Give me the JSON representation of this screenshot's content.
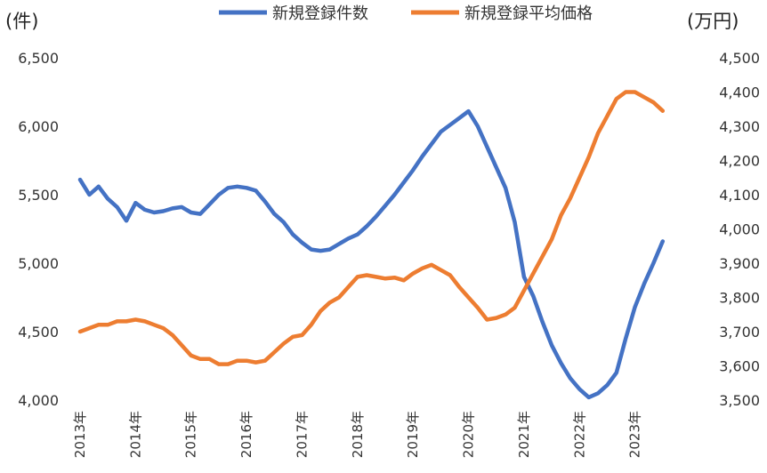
{
  "chart_data": {
    "type": "line",
    "title": "",
    "legend": {
      "placement": "top-center"
    },
    "grid": false,
    "x": {
      "label": "",
      "tick_labels": [
        "2013年",
        "2014年",
        "2015年",
        "2016年",
        "2017年",
        "2018年",
        "2019年",
        "2020年",
        "2021年",
        "2022年",
        "2023年"
      ],
      "range": [
        "2013-01",
        "2023-12"
      ]
    },
    "y_left": {
      "unit_label": "(件)",
      "range": [
        4000,
        6500
      ],
      "ticks": [
        "4,000",
        "4,500",
        "5,000",
        "5,500",
        "6,000",
        "6,500"
      ]
    },
    "y_right": {
      "unit_label": "(万円)",
      "range": [
        3500,
        4500
      ],
      "ticks": [
        "3,500",
        "3,600",
        "3,700",
        "3,800",
        "3,900",
        "4,000",
        "4,100",
        "4,200",
        "4,300",
        "4,400",
        "4,500"
      ]
    },
    "series": [
      {
        "name": "新規登録件数",
        "axis": "left",
        "color": "#4472C4",
        "points": [
          [
            "2013-01",
            5610
          ],
          [
            "2013-03",
            5500
          ],
          [
            "2013-05",
            5560
          ],
          [
            "2013-07",
            5470
          ],
          [
            "2013-09",
            5410
          ],
          [
            "2013-11",
            5310
          ],
          [
            "2014-01",
            5440
          ],
          [
            "2014-03",
            5390
          ],
          [
            "2014-05",
            5370
          ],
          [
            "2014-07",
            5380
          ],
          [
            "2014-09",
            5400
          ],
          [
            "2014-11",
            5410
          ],
          [
            "2015-01",
            5370
          ],
          [
            "2015-03",
            5360
          ],
          [
            "2015-05",
            5430
          ],
          [
            "2015-07",
            5500
          ],
          [
            "2015-09",
            5550
          ],
          [
            "2015-11",
            5560
          ],
          [
            "2016-01",
            5550
          ],
          [
            "2016-03",
            5530
          ],
          [
            "2016-05",
            5450
          ],
          [
            "2016-07",
            5360
          ],
          [
            "2016-09",
            5300
          ],
          [
            "2016-11",
            5210
          ],
          [
            "2017-01",
            5150
          ],
          [
            "2017-03",
            5100
          ],
          [
            "2017-05",
            5090
          ],
          [
            "2017-07",
            5100
          ],
          [
            "2017-09",
            5140
          ],
          [
            "2017-11",
            5180
          ],
          [
            "2018-01",
            5210
          ],
          [
            "2018-03",
            5270
          ],
          [
            "2018-05",
            5340
          ],
          [
            "2018-07",
            5420
          ],
          [
            "2018-09",
            5500
          ],
          [
            "2018-11",
            5590
          ],
          [
            "2019-01",
            5680
          ],
          [
            "2019-03",
            5780
          ],
          [
            "2019-05",
            5870
          ],
          [
            "2019-07",
            5960
          ],
          [
            "2019-09",
            6010
          ],
          [
            "2019-11",
            6060
          ],
          [
            "2020-01",
            6110
          ],
          [
            "2020-03",
            6000
          ],
          [
            "2020-05",
            5850
          ],
          [
            "2020-07",
            5700
          ],
          [
            "2020-09",
            5550
          ],
          [
            "2020-11",
            5300
          ],
          [
            "2021-01",
            4900
          ],
          [
            "2021-03",
            4760
          ],
          [
            "2021-05",
            4570
          ],
          [
            "2021-07",
            4400
          ],
          [
            "2021-09",
            4270
          ],
          [
            "2021-11",
            4160
          ],
          [
            "2022-01",
            4080
          ],
          [
            "2022-03",
            4020
          ],
          [
            "2022-05",
            4050
          ],
          [
            "2022-07",
            4110
          ],
          [
            "2022-09",
            4200
          ],
          [
            "2022-11",
            4450
          ],
          [
            "2023-01",
            4680
          ],
          [
            "2023-03",
            4850
          ],
          [
            "2023-05",
            5000
          ],
          [
            "2023-07",
            5160
          ]
        ]
      },
      {
        "name": "新規登録平均価格",
        "axis": "right",
        "color": "#ED7D31",
        "points": [
          [
            "2013-01",
            3700
          ],
          [
            "2013-03",
            3710
          ],
          [
            "2013-05",
            3720
          ],
          [
            "2013-07",
            3720
          ],
          [
            "2013-09",
            3730
          ],
          [
            "2013-11",
            3730
          ],
          [
            "2014-01",
            3735
          ],
          [
            "2014-03",
            3730
          ],
          [
            "2014-05",
            3720
          ],
          [
            "2014-07",
            3710
          ],
          [
            "2014-09",
            3690
          ],
          [
            "2014-11",
            3660
          ],
          [
            "2015-01",
            3630
          ],
          [
            "2015-03",
            3620
          ],
          [
            "2015-05",
            3620
          ],
          [
            "2015-07",
            3605
          ],
          [
            "2015-09",
            3605
          ],
          [
            "2015-11",
            3615
          ],
          [
            "2016-01",
            3615
          ],
          [
            "2016-03",
            3610
          ],
          [
            "2016-05",
            3615
          ],
          [
            "2016-07",
            3640
          ],
          [
            "2016-09",
            3665
          ],
          [
            "2016-11",
            3685
          ],
          [
            "2017-01",
            3690
          ],
          [
            "2017-03",
            3720
          ],
          [
            "2017-05",
            3760
          ],
          [
            "2017-07",
            3785
          ],
          [
            "2017-09",
            3800
          ],
          [
            "2017-11",
            3830
          ],
          [
            "2018-01",
            3860
          ],
          [
            "2018-03",
            3865
          ],
          [
            "2018-05",
            3860
          ],
          [
            "2018-07",
            3855
          ],
          [
            "2018-09",
            3858
          ],
          [
            "2018-11",
            3850
          ],
          [
            "2019-01",
            3870
          ],
          [
            "2019-03",
            3885
          ],
          [
            "2019-05",
            3895
          ],
          [
            "2019-07",
            3880
          ],
          [
            "2019-09",
            3865
          ],
          [
            "2019-11",
            3830
          ],
          [
            "2020-01",
            3800
          ],
          [
            "2020-03",
            3770
          ],
          [
            "2020-05",
            3735
          ],
          [
            "2020-07",
            3740
          ],
          [
            "2020-09",
            3750
          ],
          [
            "2020-11",
            3770
          ],
          [
            "2021-01",
            3820
          ],
          [
            "2021-03",
            3870
          ],
          [
            "2021-05",
            3920
          ],
          [
            "2021-07",
            3970
          ],
          [
            "2021-09",
            4040
          ],
          [
            "2021-11",
            4090
          ],
          [
            "2022-01",
            4150
          ],
          [
            "2022-03",
            4210
          ],
          [
            "2022-05",
            4280
          ],
          [
            "2022-07",
            4330
          ],
          [
            "2022-09",
            4380
          ],
          [
            "2022-11",
            4400
          ],
          [
            "2023-01",
            4400
          ],
          [
            "2023-03",
            4385
          ],
          [
            "2023-05",
            4370
          ],
          [
            "2023-07",
            4345
          ]
        ]
      }
    ]
  }
}
